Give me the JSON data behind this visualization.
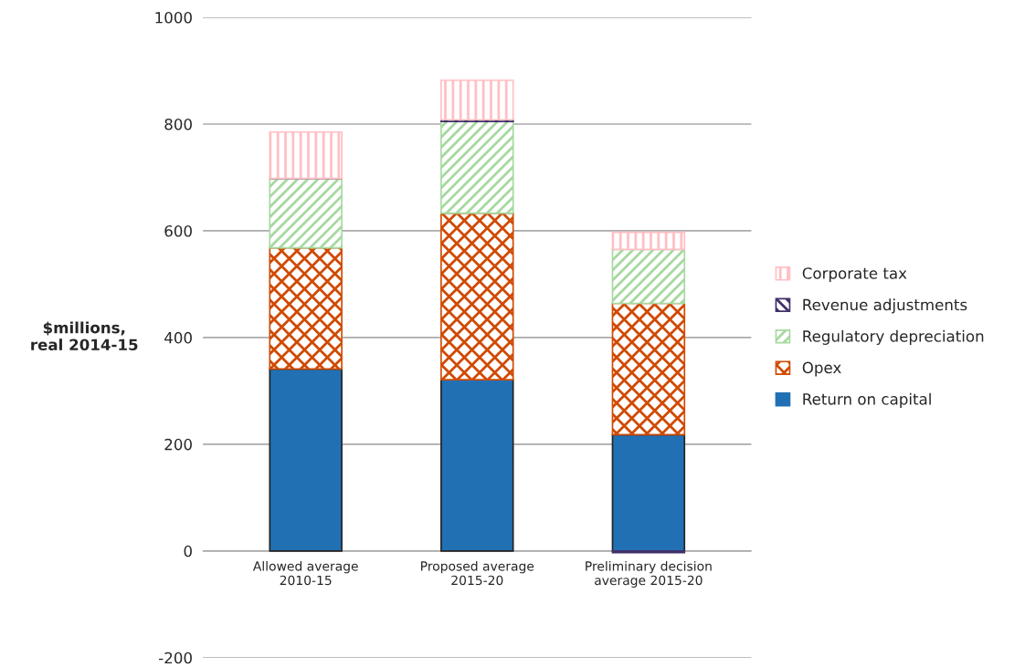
{
  "chart_data": {
    "type": "bar",
    "stacked": true,
    "ylabel": "$millions,\nreal 2014-15",
    "categories": [
      "Allowed average\n2010-15",
      "Proposed average\n2015-20",
      "Preliminary decision\naverage 2015-20"
    ],
    "series": [
      {
        "name": "Return on capital",
        "color": "#2270b4",
        "values": [
          341,
          321,
          218
        ]
      },
      {
        "name": "Opex",
        "color": "#d04a02",
        "values": [
          227,
          312,
          246
        ]
      },
      {
        "name": "Regulatory depreciation",
        "color": "#a6d9a0",
        "values": [
          130,
          172,
          101
        ]
      },
      {
        "name": "Revenue adjustments",
        "color": "#403068",
        "values": [
          0,
          3,
          -3
        ]
      },
      {
        "name": "Corporate tax",
        "color": "#ffbfc4",
        "values": [
          87,
          74,
          32
        ]
      }
    ],
    "ylim": [
      -200,
      1000
    ],
    "yticks": [
      -200,
      0,
      200,
      400,
      600,
      800,
      1000
    ],
    "grid": "y",
    "legend": "right"
  }
}
